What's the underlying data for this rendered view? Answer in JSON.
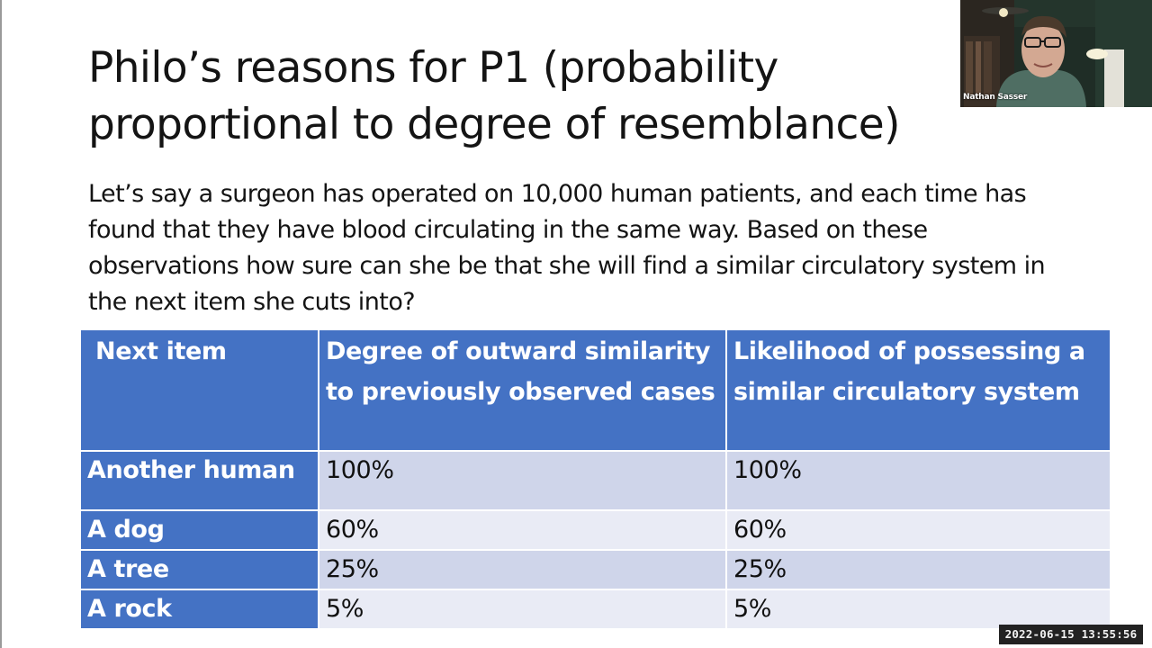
{
  "slide": {
    "title": "Philo’s reasons for P1 (probability proportional to degree of resemblance)",
    "body": "Let’s say a surgeon has operated on 10,000 human patients, and each time has found that they have blood circulating in the same way. Based on these observations how sure can she be that she will find a similar circulatory system in the next item she cuts into?"
  },
  "table": {
    "headers": [
      "Next item",
      "Degree of outward similarity to previously observed cases",
      "Likelihood of possessing a similar circulatory system"
    ],
    "rows": [
      {
        "item": "Another human",
        "similarity": "100%",
        "likelihood": "100%"
      },
      {
        "item": "A dog",
        "similarity": "60%",
        "likelihood": "60%"
      },
      {
        "item": "A tree",
        "similarity": "25%",
        "likelihood": "25%"
      },
      {
        "item": "A rock",
        "similarity": "5%",
        "likelihood": "5%"
      }
    ]
  },
  "webcam": {
    "participant_name": "Nathan Sasser"
  },
  "recording": {
    "timestamp": "2022-06-15  13:55:56"
  },
  "colors": {
    "table_header": "#4472c4",
    "row_band_dark": "#cfd5ea",
    "row_band_light": "#e9ebf5"
  }
}
